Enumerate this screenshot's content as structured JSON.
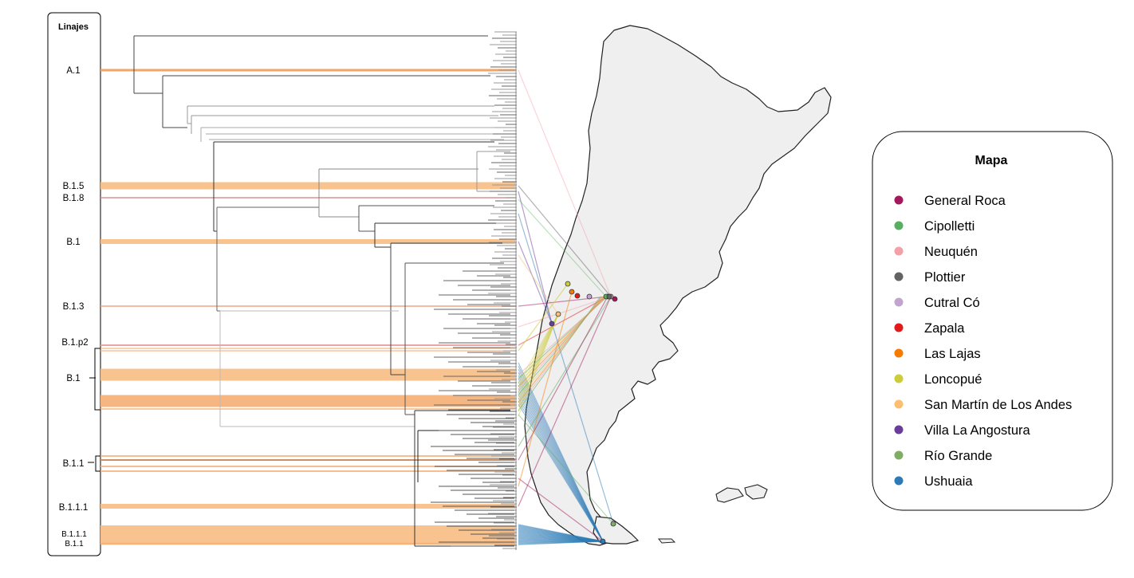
{
  "lineages": {
    "title": "Linajes",
    "labels": [
      {
        "text": "A.1",
        "color": "#f2a060",
        "band": 3
      },
      {
        "text": "B.1.5",
        "color": "#f9c089",
        "band": 9
      },
      {
        "text": "B.1.8",
        "color": "#d98a8a",
        "band": 1.5
      },
      {
        "text": "B.1",
        "color": "#f9c089",
        "band": 6
      },
      {
        "text": "B.1.3",
        "color": "#f0a080",
        "band": 1.5
      },
      {
        "text": "B.1.p2",
        "color": "#e8a0a0",
        "band": 2
      },
      {
        "text": "B.1",
        "color": "#f9c089",
        "band": 15
      },
      {
        "text": "B.1.1",
        "color": "#c98a60",
        "band": 2
      },
      {
        "text": "B.1.1.1",
        "color": "#f9c089",
        "band": 6
      },
      {
        "text": "B.1.1.1",
        "color": "#f9c089",
        "band": 24
      },
      {
        "text": "B.1.1",
        "color": "#f9c089",
        "band": 0
      }
    ]
  },
  "legend": {
    "title": "Mapa",
    "items": [
      {
        "label": "General Roca",
        "color": "#a3195b"
      },
      {
        "label": "Cipolletti",
        "color": "#5aae61"
      },
      {
        "label": "Neuquén",
        "color": "#f4a0a8"
      },
      {
        "label": "Plottier",
        "color": "#636363"
      },
      {
        "label": "Cutral Có",
        "color": "#c2a5cf"
      },
      {
        "label": "Zapala",
        "color": "#e31a1c"
      },
      {
        "label": "Las Lajas",
        "color": "#f57c00"
      },
      {
        "label": "Loncopué",
        "color": "#cdcd3a"
      },
      {
        "label": "San Martín de Los Andes",
        "color": "#fdbf6f"
      },
      {
        "label": "Villa La Angostura",
        "color": "#6a3d9a"
      },
      {
        "label": "Río Grande",
        "color": "#7fae63"
      },
      {
        "label": "Ushuaia",
        "color": "#2c7bb6"
      }
    ]
  },
  "map": {
    "fill": "#efefef",
    "stroke": "#222222"
  }
}
